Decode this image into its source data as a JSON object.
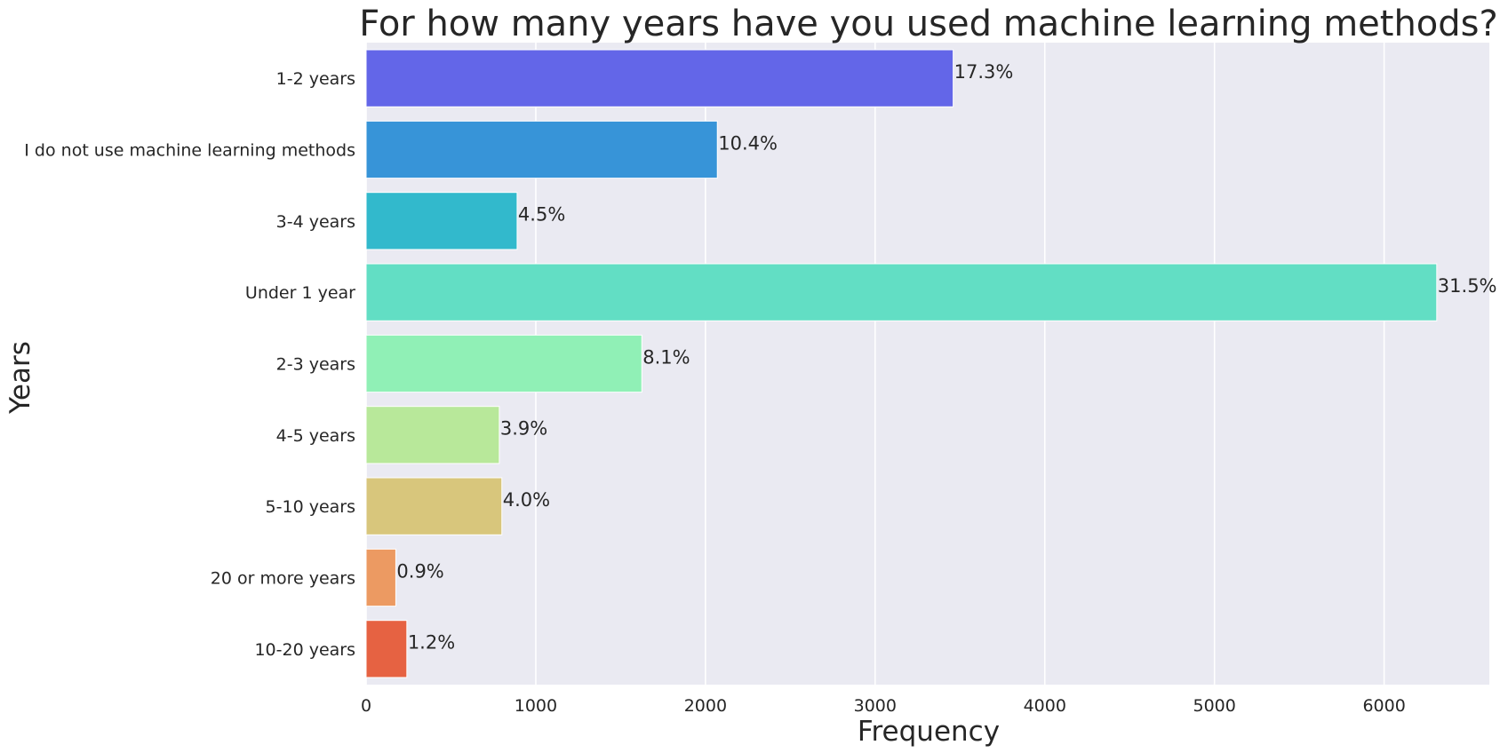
{
  "chart_data": {
    "type": "bar",
    "orientation": "horizontal",
    "title": "For how many years have you used machine learning methods?",
    "xlabel": "Frequency",
    "ylabel": "Years",
    "xlim": [
      0,
      6620
    ],
    "xticks": [
      0,
      1000,
      2000,
      3000,
      4000,
      5000,
      6000
    ],
    "grid": true,
    "categories": [
      "1-2 years",
      "I do not use machine learning methods",
      "3-4 years",
      "Under 1 year",
      "2-3 years",
      "4-5 years",
      "5-10 years",
      "20 or more years",
      "10-20 years"
    ],
    "values": [
      3460,
      2070,
      890,
      6310,
      1625,
      785,
      800,
      175,
      240
    ],
    "data_labels": [
      "17.3%",
      "10.4%",
      "4.5%",
      "31.5%",
      "8.1%",
      "3.9%",
      "4.0%",
      "0.9%",
      "1.2%"
    ],
    "colors": [
      "#6366e8",
      "#3794d8",
      "#32b9cc",
      "#62dec4",
      "#90f0b6",
      "#b8e89a",
      "#d8c67c",
      "#ec9a62",
      "#e66242"
    ],
    "background_color": "#eaeaf2",
    "grid_color": "#ffffff"
  }
}
